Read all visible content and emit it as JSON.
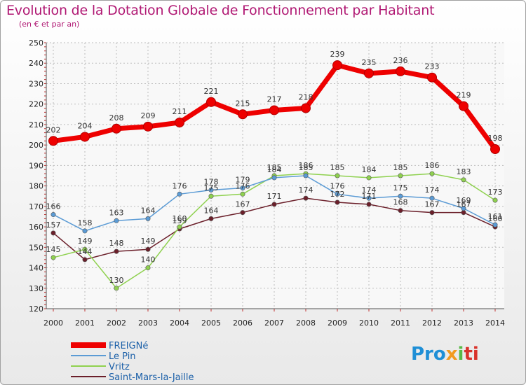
{
  "chart_data": {
    "type": "line",
    "title": "Evolution de la Dotation Globale de Fonctionnement par Habitant",
    "subtitle": "(en € et par an)",
    "xlabel": "",
    "ylabel": "",
    "x": [
      "2000",
      "2001",
      "2002",
      "2003",
      "2004",
      "2005",
      "2006",
      "2007",
      "2008",
      "2009",
      "2010",
      "2011",
      "2012",
      "2013",
      "2014"
    ],
    "ylim": [
      120,
      250
    ],
    "yticks": [
      120,
      130,
      140,
      150,
      160,
      170,
      180,
      190,
      200,
      210,
      220,
      230,
      240,
      250
    ],
    "grid": true,
    "legend_position": "bottom-left",
    "series": [
      {
        "name": "FREIGNé",
        "color": "#ee0000",
        "values": [
          202,
          204,
          208,
          209,
          211,
          221,
          215,
          217,
          218,
          239,
          235,
          236,
          233,
          219,
          198
        ]
      },
      {
        "name": "Le Pin",
        "color": "#5b9bd5",
        "values": [
          166,
          158,
          163,
          164,
          176,
          178,
          179,
          184,
          185,
          176,
          174,
          175,
          174,
          169,
          161
        ]
      },
      {
        "name": "Vritz",
        "color": "#8fd14f",
        "values": [
          145,
          149,
          130,
          140,
          160,
          175,
          176,
          185,
          186,
          185,
          184,
          185,
          186,
          183,
          173
        ]
      },
      {
        "name": "Saint-Mars-la-Jaille",
        "color": "#6b1f2a",
        "values": [
          157,
          144,
          148,
          149,
          159,
          164,
          167,
          171,
          174,
          172,
          171,
          168,
          167,
          167,
          160
        ]
      }
    ]
  },
  "logo": {
    "p1": "Pro",
    "p2": "x",
    "p3": "i",
    "p4": "ti"
  }
}
